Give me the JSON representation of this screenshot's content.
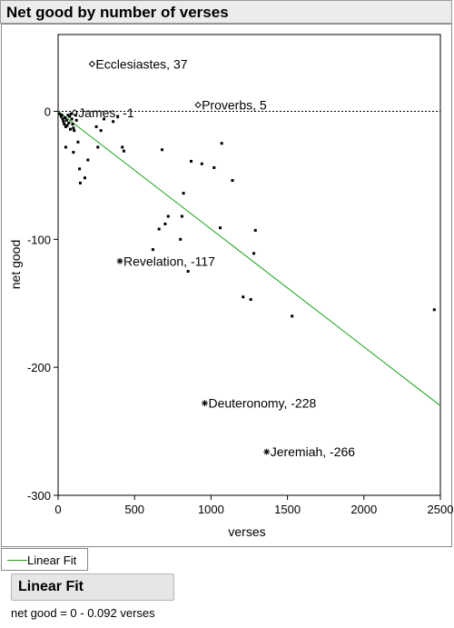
{
  "header": {
    "title": "Net good by number of verses"
  },
  "legend": {
    "label": "Linear Fit"
  },
  "fit_panel": {
    "title": "Linear Fit",
    "equation": "net good = 0 - 0.092 verses"
  },
  "colors": {
    "fit_line": "#1aa31a",
    "points": "#000000",
    "zero_line": "#000000"
  },
  "chart_data": {
    "type": "scatter",
    "xlabel": "verses",
    "ylabel": "net good",
    "xlim": [
      0,
      2500
    ],
    "ylim": [
      -300,
      60
    ],
    "xticks": [
      0,
      500,
      1000,
      1500,
      2000,
      2500
    ],
    "yticks": [
      0,
      -100,
      -200,
      -300
    ],
    "grid": false,
    "fit": {
      "intercept": 0,
      "slope": -0.092
    },
    "labeled_points": [
      {
        "label": "Ecclesiastes, 37",
        "x": 222,
        "y": 37,
        "marker": "diamond"
      },
      {
        "label": "James, -1",
        "x": 108,
        "y": -1,
        "marker": "diamond"
      },
      {
        "label": "Proverbs, 5",
        "x": 915,
        "y": 5,
        "marker": "diamond"
      },
      {
        "label": "Revelation, -117",
        "x": 404,
        "y": -117,
        "marker": "star"
      },
      {
        "label": "Deuteronomy, -228",
        "x": 959,
        "y": -228,
        "marker": "star"
      },
      {
        "label": "Jeremiah, -266",
        "x": 1364,
        "y": -266,
        "marker": "star"
      }
    ],
    "points": [
      [
        10,
        -2
      ],
      [
        20,
        -4
      ],
      [
        25,
        -3
      ],
      [
        30,
        -6
      ],
      [
        35,
        -8
      ],
      [
        40,
        -10
      ],
      [
        45,
        -5
      ],
      [
        50,
        -12
      ],
      [
        55,
        -7
      ],
      [
        60,
        -11
      ],
      [
        65,
        -3
      ],
      [
        70,
        -9
      ],
      [
        75,
        -4
      ],
      [
        80,
        -14
      ],
      [
        85,
        -2
      ],
      [
        90,
        -6
      ],
      [
        95,
        -10
      ],
      [
        100,
        -13
      ],
      [
        105,
        -15
      ],
      [
        110,
        -1
      ],
      [
        115,
        -3
      ],
      [
        120,
        -7
      ],
      [
        50,
        -28
      ],
      [
        100,
        -32
      ],
      [
        130,
        -24
      ],
      [
        140,
        -45
      ],
      [
        145,
        -56
      ],
      [
        175,
        -52
      ],
      [
        195,
        -38
      ],
      [
        250,
        -12
      ],
      [
        260,
        -28
      ],
      [
        280,
        -15
      ],
      [
        300,
        -6
      ],
      [
        360,
        -8
      ],
      [
        390,
        -4
      ],
      [
        420,
        -28
      ],
      [
        430,
        -31
      ],
      [
        620,
        -108
      ],
      [
        660,
        -92
      ],
      [
        680,
        -30
      ],
      [
        700,
        -88
      ],
      [
        720,
        -82
      ],
      [
        800,
        -100
      ],
      [
        810,
        -82
      ],
      [
        820,
        -64
      ],
      [
        850,
        -125
      ],
      [
        870,
        -39
      ],
      [
        940,
        -41
      ],
      [
        1020,
        -44
      ],
      [
        1060,
        -91
      ],
      [
        1070,
        -25
      ],
      [
        1140,
        -54
      ],
      [
        1210,
        -145
      ],
      [
        1260,
        -147
      ],
      [
        1280,
        -111
      ],
      [
        1290,
        -93
      ],
      [
        1530,
        -160
      ],
      [
        2460,
        -155
      ]
    ]
  }
}
